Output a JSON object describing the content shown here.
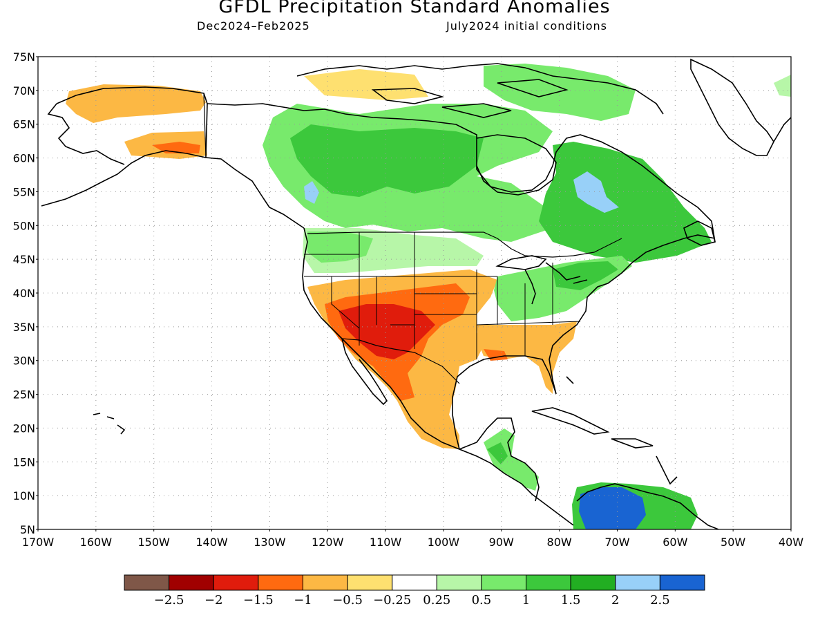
{
  "title": "GFDL Precipitation Standard Anomalies",
  "subtitle_left": "Dec2024–Feb2025",
  "subtitle_right": "July2024 initial conditions",
  "map": {
    "lat_labels": [
      "75N",
      "70N",
      "65N",
      "60N",
      "55N",
      "50N",
      "45N",
      "40N",
      "35N",
      "30N",
      "25N",
      "20N",
      "15N",
      "10N",
      "5N"
    ],
    "lon_labels": [
      "170W",
      "160W",
      "150W",
      "140W",
      "130W",
      "120W",
      "110W",
      "100W",
      "90W",
      "80W",
      "70W",
      "60W",
      "50W",
      "40W"
    ],
    "lat_range": [
      5,
      75
    ],
    "lon_range": [
      -170,
      -40
    ],
    "grid": "dotted",
    "regions": [
      {
        "name": "alaska-north-slope",
        "category": "-1 to -0.5"
      },
      {
        "name": "yukon-alaska-south",
        "category": "-1.5 to -1"
      },
      {
        "name": "canada-interior",
        "category": "0.5 to 1.5"
      },
      {
        "name": "quebec-labrador",
        "category": "1 to 2"
      },
      {
        "name": "northwest-us",
        "category": "0.25 to 1"
      },
      {
        "name": "southwest-us",
        "category": "-2 to -1"
      },
      {
        "name": "southern-plains-mexico",
        "category": "-1 to -0.5"
      },
      {
        "name": "southeast-us",
        "category": "-1 to -0.25"
      },
      {
        "name": "ohio-valley-northeast",
        "category": "0.5 to 1.5"
      },
      {
        "name": "central-america",
        "category": "0.5 to 1.5"
      },
      {
        "name": "northern-south-america",
        "category": "2 to 2.5+"
      }
    ]
  },
  "legend": {
    "labels": [
      "−2.5",
      "−2",
      "−1.5",
      "−1",
      "−0.5",
      "−0.25",
      "0.25",
      "0.5",
      "1",
      "1.5",
      "2",
      "2.5"
    ],
    "colors": [
      "#7f5748",
      "#a00000",
      "#e01c0c",
      "#ff6a10",
      "#fcb844",
      "#fee070",
      "#ffffff",
      "#b7f6a8",
      "#78ea6c",
      "#3cc83c",
      "#22ae22",
      "#98d0f8",
      "#1964d2"
    ]
  }
}
